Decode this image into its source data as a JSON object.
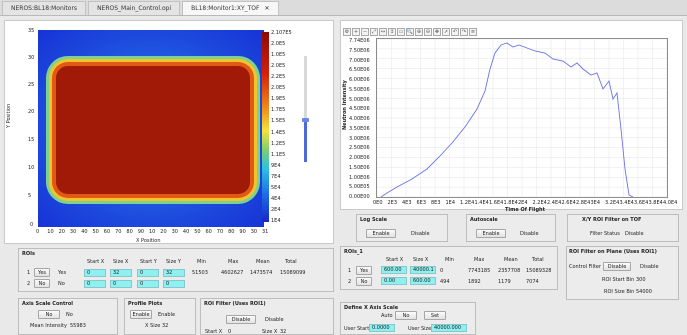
{
  "tabs": [
    {
      "label": "NEROS:BL18:Monitors",
      "active": false
    },
    {
      "label": "NEROS_Main_Control.opi",
      "active": false
    },
    {
      "label": "BL18:Monitor1:XY_TOF",
      "active": true
    }
  ],
  "image_panel": {
    "y_label": "Y Position",
    "x_label": "X Position",
    "y_ticks": [
      "35",
      "30",
      "25",
      "20",
      "15",
      "10",
      "5",
      "0"
    ],
    "x_ticks": [
      "0",
      "10",
      "20",
      "30",
      "40",
      "50",
      "60",
      "70",
      "80",
      "90",
      "10",
      "20",
      "30",
      "40",
      "50",
      "60",
      "70",
      "80",
      "90",
      "30",
      "31"
    ],
    "colorbar_labels": [
      "2.107E5",
      "2.0E5",
      "1.0E5",
      "2.0E5",
      "2.2E5",
      "2.0E5",
      "1.9E5",
      "1.7E5",
      "1.5E5",
      "1.4E5",
      "1.2E5",
      "1.1E5",
      "9E4",
      "7E4",
      "5E4",
      "4E4",
      "2E4",
      "1E4"
    ]
  },
  "rois_table": {
    "title": "ROIs",
    "headers": [
      "Start X",
      "Size X",
      "Start Y",
      "Size Y",
      "Min",
      "Max",
      "Mean",
      "Total"
    ],
    "rows": [
      {
        "index": "1",
        "b1": "Yes",
        "b2": "Yes",
        "start_x": "0",
        "size_x": "32",
        "start_y": "0",
        "size_y": "32",
        "min": "51503",
        "max": "4602627",
        "mean": "1473574",
        "total": "15089099"
      },
      {
        "index": "2",
        "b1": "No",
        "b2": "No",
        "start_x": "0",
        "size_x": "0",
        "start_y": "0",
        "size_y": "0",
        "min": "",
        "max": "",
        "mean": "",
        "total": ""
      }
    ]
  },
  "axis_scale_control": {
    "title": "Axis Scale Control",
    "no1": "No",
    "no2": "No",
    "mean_label": "Mean Intensity",
    "mean_value": "55983"
  },
  "profile_plots": {
    "title": "Profile Plots",
    "enable1": "Enable",
    "enable2": "Enable",
    "xsize_label": "X Size",
    "xsize_value": "32"
  },
  "roi_filter_rois": {
    "title": "ROI Filter (Uses ROI1)",
    "disable1": "Disable",
    "disable2": "Disable",
    "start_label": "Start X",
    "start_value": "0",
    "size_label": "Size X",
    "size_value": "32"
  },
  "tof_plot": {
    "y_label": "Neutron Intensity",
    "x_label": "Time Of Flight",
    "y_ticks": [
      "7.74E06",
      "7.50E06",
      "7.00E06",
      "6.50E06",
      "6.00E06",
      "5.50E06",
      "5.00E06",
      "4.50E06",
      "4.00E06",
      "3.50E06",
      "3.00E06",
      "2.50E06",
      "2.00E06",
      "1.50E06",
      "1.00E06",
      "5.00E05",
      "0.00E00"
    ],
    "x_ticks": [
      "0E0",
      "2E3",
      "4E3",
      "6E3",
      "8E3",
      "1E4",
      "1.2E4",
      "1.4E4",
      "1.6E4",
      "1.8E4",
      "2E4",
      "2.2E4",
      "2.4E4",
      "2.6E4",
      "2.8E4",
      "3E4",
      "3.2E4",
      "3.4E4",
      "3.6E4",
      "3.8E4",
      "4.0E4"
    ]
  },
  "log_scale": {
    "title": "Log Scale",
    "enable": "Enable",
    "disable": "Disable"
  },
  "autoscale": {
    "title": "Autoscale",
    "enable": "Enable",
    "disable": "Disable"
  },
  "xy_roi_filter": {
    "title": "X/Y ROI Filter on TOF",
    "status_label": "Filter Status",
    "status_value": "Disable"
  },
  "tof_rois": {
    "title": "ROIs_1",
    "headers": [
      "Start X",
      "Size X",
      "Min",
      "Max",
      "Mean",
      "Total"
    ],
    "rows": [
      {
        "index": "1",
        "btn": "Yes",
        "start_x": "600.00",
        "size_x": "40000.1",
        "min": "0",
        "max": "7743185",
        "mean": "2357708",
        "total": "15089328"
      },
      {
        "index": "2",
        "btn": "No",
        "start_x": "0.00",
        "size_x": "600.00",
        "min": "494",
        "max": "1892",
        "mean": "1179",
        "total": "7074"
      }
    ]
  },
  "roi_filter_plane": {
    "title": "ROI Filter on Plane (Uses ROI1)",
    "control_label": "Control Filter",
    "disable1": "Disable",
    "disable2": "Disable",
    "start_label": "ROI Start Bin",
    "start_value": "300",
    "size_label": "ROI Size Bin",
    "size_value": "54000"
  },
  "define_x_axis": {
    "title": "Define X Axis Scale",
    "auto_label": "Auto",
    "no": "No",
    "set": "Set",
    "user_start_label": "User Start",
    "user_start_value": "0.0000",
    "user_size_label": "User Size",
    "user_size_value": "40000.000"
  }
}
